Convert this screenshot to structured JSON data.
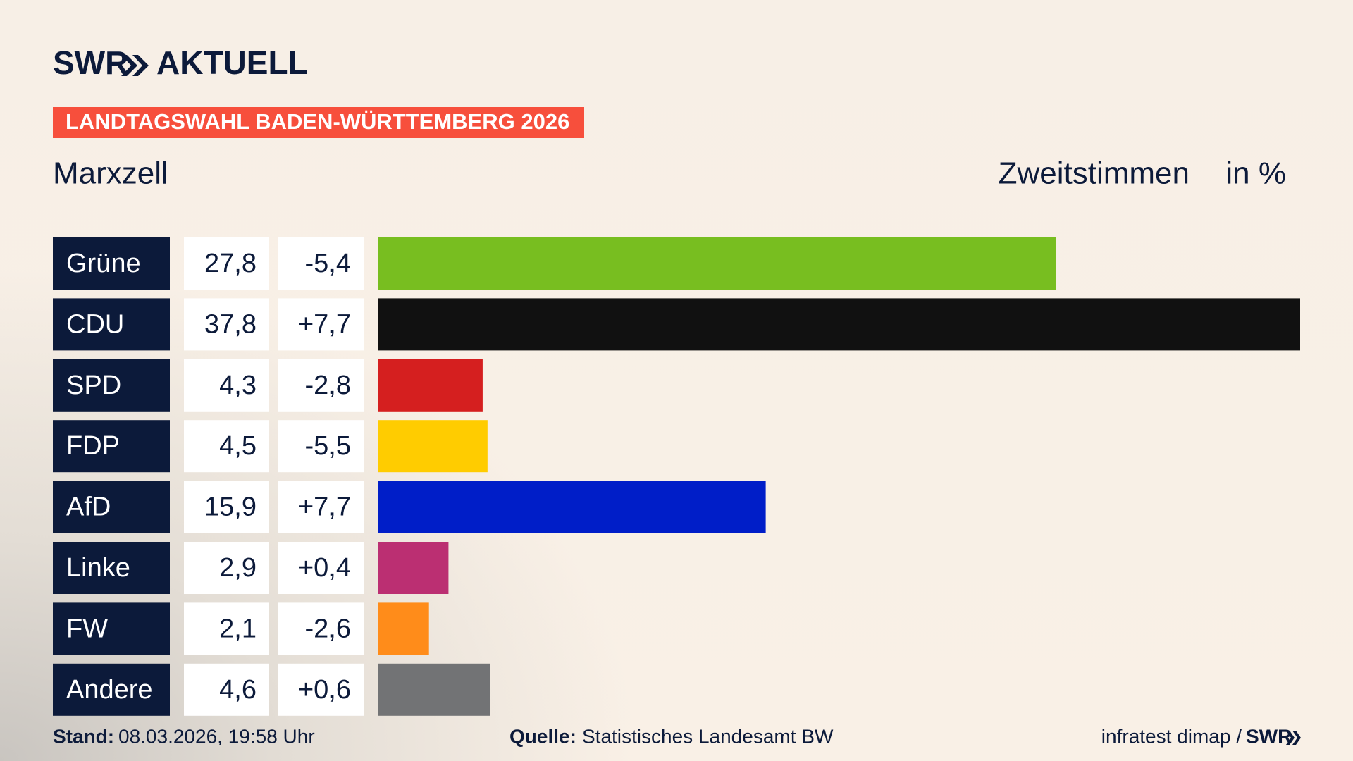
{
  "logo": {
    "brand": "SWR",
    "name": "AKTUELL"
  },
  "banner": "LANDTAGSWAHL BADEN-WÜRTTEMBERG 2026",
  "chart_data": {
    "type": "bar",
    "orientation": "horizontal",
    "title": "Marxzell",
    "subtitle": "Zweitstimmen",
    "unit": "in %",
    "categories": [
      "Grüne",
      "CDU",
      "SPD",
      "FDP",
      "AfD",
      "Linke",
      "FW",
      "Andere"
    ],
    "values": [
      27.8,
      37.8,
      4.3,
      4.5,
      15.9,
      2.9,
      2.1,
      4.6
    ],
    "value_labels": [
      "27,8",
      "37,8",
      "4,3",
      "4,5",
      "15,9",
      "2,9",
      "2,1",
      "4,6"
    ],
    "changes": [
      "-5,4",
      "+7,7",
      "-2,8",
      "-5,5",
      "+7,7",
      "+0,4",
      "-2,6",
      "+0,6"
    ],
    "colors": [
      "#78be20",
      "#111111",
      "#d51f1f",
      "#ffcc00",
      "#001ec8",
      "#bb2f72",
      "#ff8c1a",
      "#727375"
    ]
  },
  "footer": {
    "stand_label": "Stand:",
    "stand": "08.03.2026, 19:58 Uhr",
    "source_label": "Quelle:",
    "source": "Statistisches Landesamt BW",
    "credit": "infratest dimap /",
    "credit_brand": "SWR"
  }
}
